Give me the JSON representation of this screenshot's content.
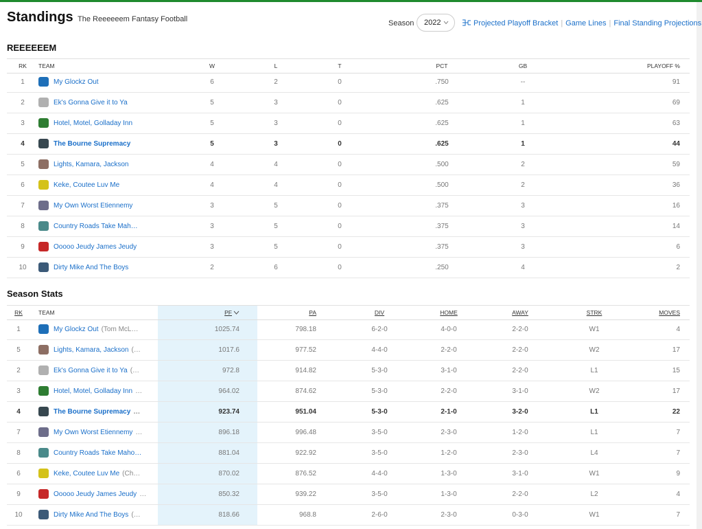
{
  "header": {
    "title": "Standings",
    "subtitle": "The Reeeeeem Fantasy Football",
    "season_label": "Season",
    "season_value": "2022",
    "links": [
      "Projected Playoff Bracket",
      "Game Lines",
      "Final Standing Projections"
    ]
  },
  "standings": {
    "title": "REEEEEEM",
    "columns": [
      "RK",
      "TEAM",
      "W",
      "L",
      "T",
      "PCT",
      "GB",
      "PLAYOFF %"
    ],
    "rows": [
      {
        "rk": 1,
        "team": "My Glockz Out",
        "w": 6,
        "l": 2,
        "t": 0,
        "pct": ".750",
        "gb": "--",
        "playoff": 91
      },
      {
        "rk": 2,
        "team": "Ek's Gonna Give it to Ya",
        "w": 5,
        "l": 3,
        "t": 0,
        "pct": ".625",
        "gb": 1,
        "playoff": 69
      },
      {
        "rk": 3,
        "team": "Hotel, Motel, Golladay Inn",
        "w": 5,
        "l": 3,
        "t": 0,
        "pct": ".625",
        "gb": 1,
        "playoff": 63
      },
      {
        "rk": 4,
        "team": "The Bourne Supremacy",
        "w": 5,
        "l": 3,
        "t": 0,
        "pct": ".625",
        "gb": 1,
        "playoff": 44
      },
      {
        "rk": 5,
        "team": "Lights, Kamara, Jackson",
        "w": 4,
        "l": 4,
        "t": 0,
        "pct": ".500",
        "gb": 2,
        "playoff": 59
      },
      {
        "rk": 6,
        "team": "Keke, Coutee Luv Me",
        "w": 4,
        "l": 4,
        "t": 0,
        "pct": ".500",
        "gb": 2,
        "playoff": 36
      },
      {
        "rk": 7,
        "team": "My Own Worst Etiennemy",
        "w": 3,
        "l": 5,
        "t": 0,
        "pct": ".375",
        "gb": 3,
        "playoff": 16
      },
      {
        "rk": 8,
        "team": "Country Roads Take Mah…",
        "w": 3,
        "l": 5,
        "t": 0,
        "pct": ".375",
        "gb": 3,
        "playoff": 14
      },
      {
        "rk": 9,
        "team": "Ooooo Jeudy James Jeudy",
        "w": 3,
        "l": 5,
        "t": 0,
        "pct": ".375",
        "gb": 3,
        "playoff": 6
      },
      {
        "rk": 10,
        "team": "Dirty Mike And The Boys",
        "w": 2,
        "l": 6,
        "t": 0,
        "pct": ".250",
        "gb": 4,
        "playoff": 2
      }
    ]
  },
  "season_stats": {
    "title": "Season Stats",
    "columns": [
      "RK",
      "TEAM",
      "PF",
      "PA",
      "DIV",
      "HOME",
      "AWAY",
      "STRK",
      "MOVES"
    ],
    "rows": [
      {
        "rk": 1,
        "team": "My Glockz Out",
        "owner": "(Tom McL…",
        "pf": 1025.74,
        "pa": 798.18,
        "div": "6-2-0",
        "home": "4-0-0",
        "away": "2-2-0",
        "strk": "W1",
        "moves": 4
      },
      {
        "rk": 5,
        "team": "Lights, Kamara, Jackson",
        "owner": "(…",
        "pf": 1017.6,
        "pa": 977.52,
        "div": "4-4-0",
        "home": "2-2-0",
        "away": "2-2-0",
        "strk": "W2",
        "moves": 17
      },
      {
        "rk": 2,
        "team": "Ek's Gonna Give it to Ya",
        "owner": "(…",
        "pf": 972.8,
        "pa": 914.82,
        "div": "5-3-0",
        "home": "3-1-0",
        "away": "2-2-0",
        "strk": "L1",
        "moves": 15
      },
      {
        "rk": 3,
        "team": "Hotel, Motel, Golladay Inn",
        "owner": "…",
        "pf": 964.02,
        "pa": 874.62,
        "div": "5-3-0",
        "home": "2-2-0",
        "away": "3-1-0",
        "strk": "W2",
        "moves": 17
      },
      {
        "rk": 4,
        "team": "The Bourne Supremacy",
        "owner": "…",
        "pf": 923.74,
        "pa": 951.04,
        "div": "5-3-0",
        "home": "2-1-0",
        "away": "3-2-0",
        "strk": "L1",
        "moves": 22
      },
      {
        "rk": 7,
        "team": "My Own Worst Etiennemy",
        "owner": "…",
        "pf": 896.18,
        "pa": 996.48,
        "div": "3-5-0",
        "home": "2-3-0",
        "away": "1-2-0",
        "strk": "L1",
        "moves": 7
      },
      {
        "rk": 8,
        "team": "Country Roads Take Maho…",
        "pf": 881.04,
        "pa": 922.92,
        "div": "3-5-0",
        "home": "1-2-0",
        "away": "2-3-0",
        "strk": "L4",
        "moves": 7
      },
      {
        "rk": 6,
        "team": "Keke, Coutee Luv Me",
        "owner": "(Ch…",
        "pf": 870.02,
        "pa": 876.52,
        "div": "4-4-0",
        "home": "1-3-0",
        "away": "3-1-0",
        "strk": "W1",
        "moves": 9
      },
      {
        "rk": 9,
        "team": "Ooooo Jeudy James Jeudy",
        "owner": "…",
        "pf": 850.32,
        "pa": 939.22,
        "div": "3-5-0",
        "home": "1-3-0",
        "away": "2-2-0",
        "strk": "L2",
        "moves": 4
      },
      {
        "rk": 10,
        "team": "Dirty Mike And The Boys",
        "owner": "(…",
        "pf": 818.66,
        "pa": 968.8,
        "div": "2-6-0",
        "home": "2-3-0",
        "away": "0-3-0",
        "strk": "W1",
        "moves": 7
      }
    ]
  }
}
